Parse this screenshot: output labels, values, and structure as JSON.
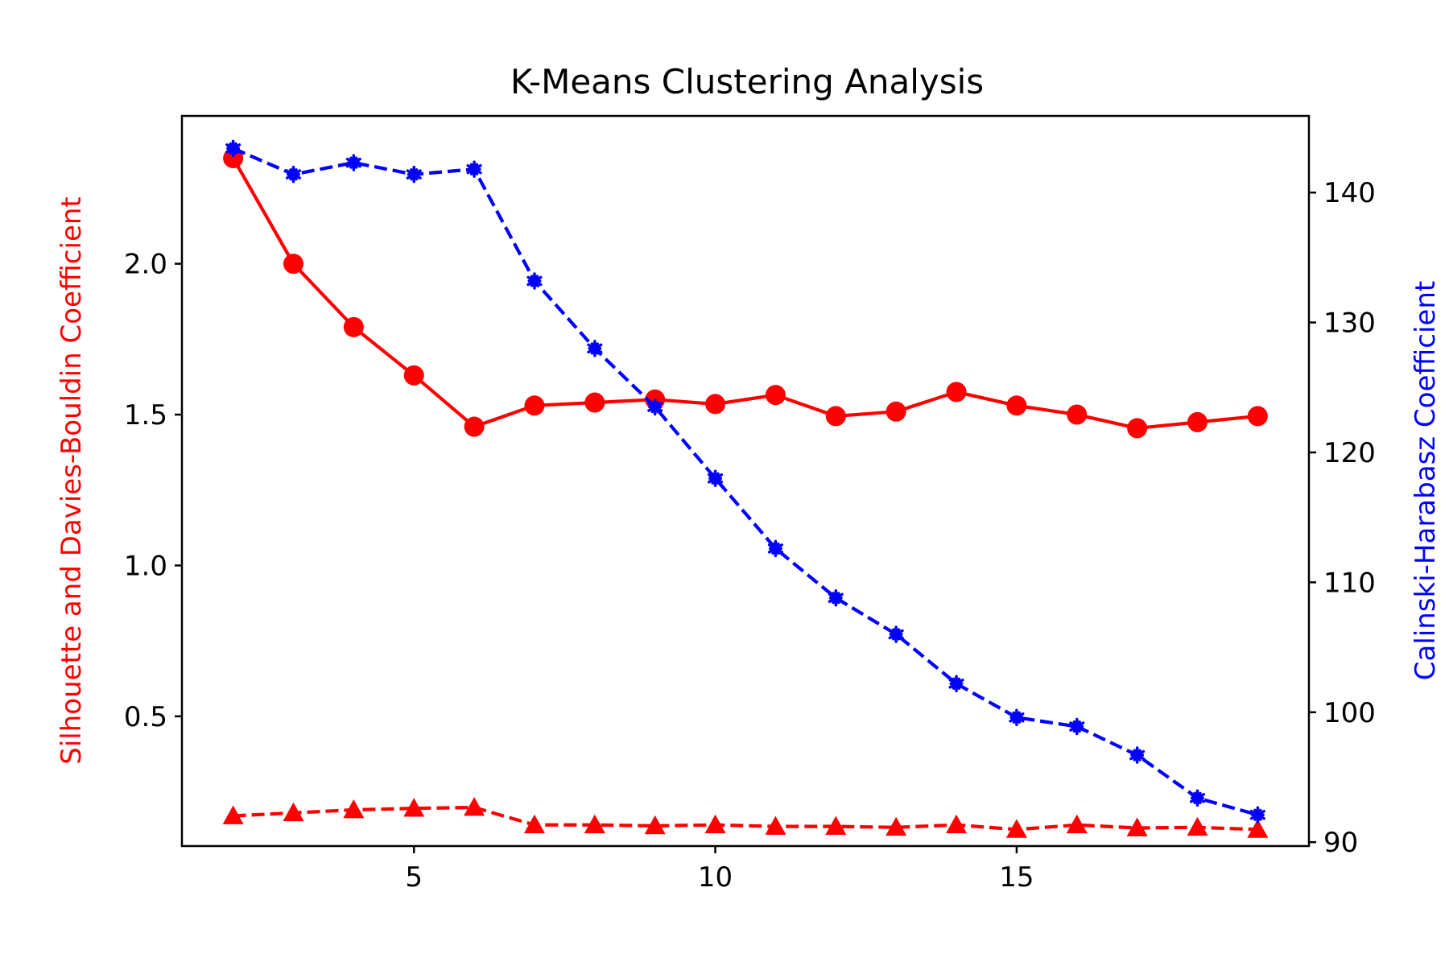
{
  "chart_data": {
    "type": "line",
    "title": "K-Means Clustering Analysis",
    "xlabel": "",
    "ylabel_left": "Silhouette and Davies-Bouldin Coefficient",
    "ylabel_right": "Calinski-Harabasz Coefficient",
    "x": [
      2,
      3,
      4,
      5,
      6,
      7,
      8,
      9,
      10,
      11,
      12,
      13,
      14,
      15,
      16,
      17,
      18,
      19
    ],
    "xlim": [
      1.15,
      19.85
    ],
    "ylim_left": [
      0.07,
      2.49
    ],
    "ylim_right": [
      89.7,
      145.9
    ],
    "x_ticks": [
      5,
      10,
      15
    ],
    "y_ticks_left": [
      0.5,
      1.0,
      1.5,
      2.0
    ],
    "y_ticks_right": [
      90,
      100,
      110,
      120,
      130,
      140
    ],
    "series": [
      {
        "axis": "left",
        "marker": "circle",
        "line": "solid",
        "color": "#ff0000",
        "values": [
          2.35,
          2.0,
          1.79,
          1.63,
          1.46,
          1.53,
          1.54,
          1.55,
          1.535,
          1.565,
          1.495,
          1.51,
          1.575,
          1.53,
          1.5,
          1.455,
          1.475,
          1.495
        ]
      },
      {
        "axis": "left",
        "marker": "triangle",
        "line": "dashed",
        "color": "#ff0000",
        "values": [
          0.17,
          0.18,
          0.19,
          0.195,
          0.198,
          0.14,
          0.14,
          0.137,
          0.14,
          0.135,
          0.135,
          0.132,
          0.14,
          0.125,
          0.14,
          0.13,
          0.132,
          0.125
        ]
      },
      {
        "axis": "right",
        "marker": "asterisk",
        "line": "dashed",
        "color": "#0000ff",
        "values": [
          143.4,
          141.4,
          142.3,
          141.4,
          141.8,
          133.2,
          128.0,
          123.5,
          118.0,
          112.6,
          108.8,
          106.0,
          102.2,
          99.6,
          98.9,
          96.7,
          93.4,
          92.1
        ]
      }
    ]
  }
}
